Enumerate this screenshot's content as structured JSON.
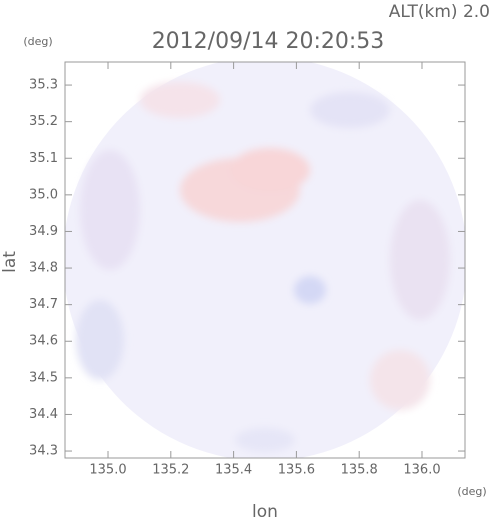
{
  "chart_data": {
    "type": "radar-map",
    "title": "2012/09/14 20:20:53",
    "annotation": "ALT(km) 2.0",
    "x_label": "lon",
    "y_label": "lat",
    "x_unit": "(deg)",
    "y_unit": "(deg)",
    "xlim": [
      134.863,
      136.137
    ],
    "ylim": [
      34.281,
      35.363
    ],
    "xticks": [
      {
        "value": 135,
        "label": "135.0"
      },
      135.2,
      135.4,
      135.6,
      135.8,
      {
        "value": 136,
        "label": "136.0"
      }
    ],
    "yticks": [
      34.3,
      34.4,
      34.5,
      34.6,
      34.7,
      34.8,
      34.9,
      {
        "value": 35,
        "label": "35.0"
      },
      35.1,
      35.2,
      35.3
    ]
  }
}
